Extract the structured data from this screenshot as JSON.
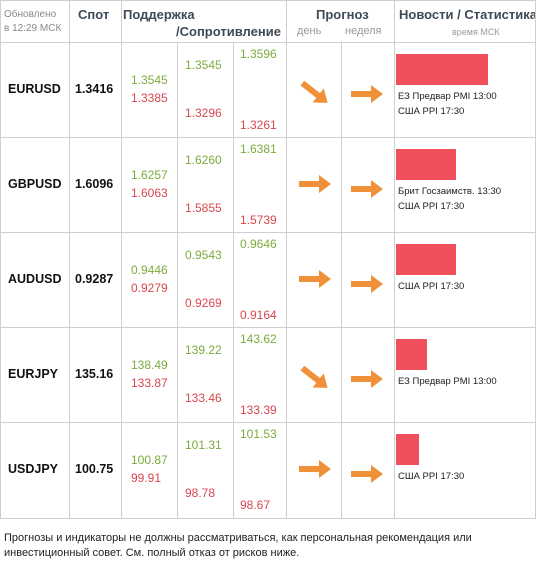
{
  "header": {
    "updated": [
      "Обновлено",
      "в 12:29 МСК"
    ],
    "spot": "Спот",
    "support": "Поддержка",
    "resistance": "/Сопротивление",
    "forecast": "Прогноз",
    "day": "день",
    "week": "неделя",
    "news": "Новости / Статистика",
    "news_time": "время МСК"
  },
  "colors": {
    "support_green": "#7cab3c",
    "resistance_red": "#d8474e",
    "arrow_orange": "#f0913a",
    "bar_red": "#ee4f5b"
  },
  "rows": [
    {
      "pair": "EURUSD",
      "spot": "1.3416",
      "l1_up": "1.3545",
      "l1_dn": "1.3385",
      "l2_up": "1.3545",
      "l2_dn": "1.3296",
      "l3_up": "1.3596",
      "l3_dn": "1.3261",
      "day": "arrow-down-right-icon",
      "week": "arrow-right-icon",
      "strength": 0.9,
      "news": [
        "ЕЗ Предвар PMI 13:00",
        "США PPI 17:30"
      ]
    },
    {
      "pair": "GBPUSD",
      "spot": "1.6096",
      "l1_up": "1.6257",
      "l1_dn": "1.6063",
      "l2_up": "1.6260",
      "l2_dn": "1.5855",
      "l3_up": "1.6381",
      "l3_dn": "1.5739",
      "day": "arrow-right-icon",
      "week": "arrow-right-icon",
      "strength": 0.59,
      "news": [
        "Брит Госзаимств. 13:30",
        "США PPI 17:30"
      ]
    },
    {
      "pair": "AUDUSD",
      "spot": "0.9287",
      "l1_up": "0.9446",
      "l1_dn": "0.9279",
      "l2_up": "0.9543",
      "l2_dn": "0.9269",
      "l3_up": "0.9646",
      "l3_dn": "0.9164",
      "day": "arrow-right-icon",
      "week": "arrow-right-icon",
      "strength": 0.59,
      "news": [
        "США PPI 17:30"
      ]
    },
    {
      "pair": "EURJPY",
      "spot": "135.16",
      "l1_up": "138.49",
      "l1_dn": "133.87",
      "l2_up": "139.22",
      "l2_dn": "133.46",
      "l3_up": "143.62",
      "l3_dn": "133.39",
      "day": "arrow-down-right-icon",
      "week": "arrow-right-icon",
      "strength": 0.3,
      "news": [
        "ЕЗ Предвар PMI 13:00"
      ]
    },
    {
      "pair": "USDJPY",
      "spot": "100.75",
      "l1_up": "100.87",
      "l1_dn": "99.91",
      "l2_up": "101.31",
      "l2_dn": "98.78",
      "l3_up": "101.53",
      "l3_dn": "98.67",
      "day": "arrow-right-icon",
      "week": "arrow-right-icon",
      "strength": 0.23,
      "news": [
        "США PPI 17:30"
      ]
    }
  ],
  "disclaimer": "Прогнозы и индикаторы не должны рассматриваться, как персональная рекомендация или инвестиционный совет. См. полный отказ от рисков ниже."
}
